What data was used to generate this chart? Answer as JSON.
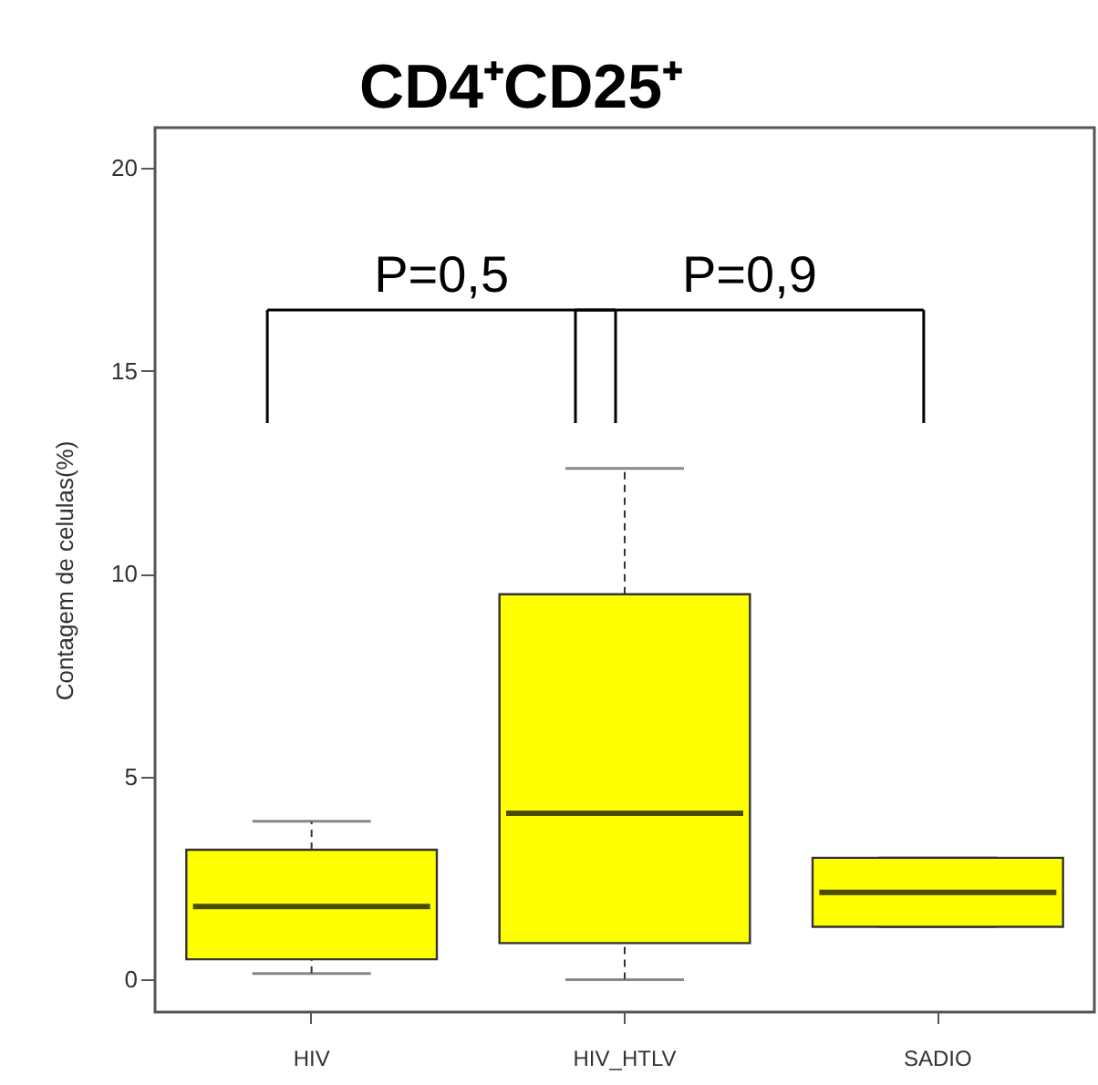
{
  "chart_data": {
    "type": "box",
    "title": "CD4⁺CD25⁺",
    "ylabel": "Contagem de celulas(%)",
    "categories": [
      "HIV",
      "HIV_HTLV",
      "SADIO"
    ],
    "series": [
      {
        "color": "#ffff00",
        "boxes": [
          {
            "low": 0.15,
            "q1": 0.5,
            "median": 1.8,
            "q3": 3.2,
            "high": 3.9
          },
          {
            "low": 0.0,
            "q1": 0.9,
            "median": 4.1,
            "q3": 9.5,
            "high": 12.6
          },
          {
            "low": 1.3,
            "q1": 1.3,
            "median": 2.15,
            "q3": 3.0,
            "high": 3.0
          }
        ]
      }
    ],
    "ylim": [
      -0.8,
      21
    ],
    "yticks": [
      0,
      5,
      10,
      15,
      20
    ],
    "annotations": [
      "P=0,5",
      "P=0,9"
    ]
  }
}
